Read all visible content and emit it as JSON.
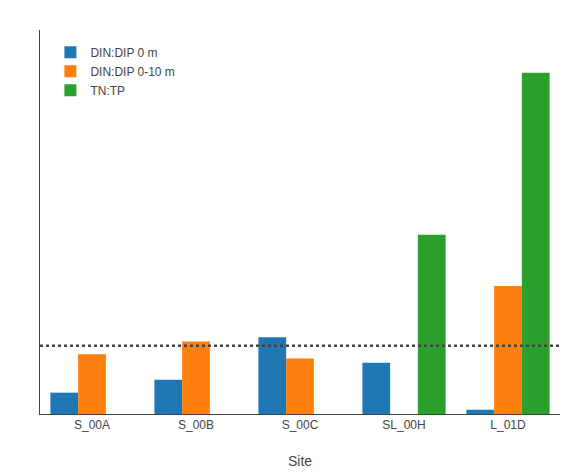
{
  "chart_data": {
    "type": "bar",
    "categories": [
      "S_00A",
      "S_00B",
      "S_00C",
      "SL_00H",
      "L_01D"
    ],
    "series": [
      {
        "name": "DIN:DIP 0 m",
        "values": [
          5.0,
          8.0,
          18.0,
          12.0,
          1.0
        ]
      },
      {
        "name": "DIN:DIP 0-10 m",
        "values": [
          14.0,
          17.0,
          13.0,
          0.0,
          30.0
        ]
      },
      {
        "name": "TN:TP",
        "values": [
          0.0,
          0.0,
          0.0,
          42.0,
          80.0
        ]
      }
    ],
    "xlabel": "Site",
    "ylim": [
      0,
      90
    ],
    "grid": false,
    "legend": "upper left",
    "tick_labels": "x",
    "reference_line": {
      "value": 16.0,
      "line_style": "dotted"
    }
  }
}
